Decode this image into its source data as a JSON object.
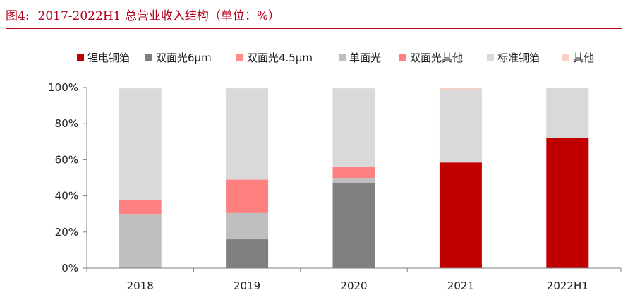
{
  "figure": {
    "label": "图4:",
    "title": "2017-2022H1 总营业收入结构（单位：%）"
  },
  "chart_data": {
    "type": "bar",
    "stacked": true,
    "categories": [
      "2018",
      "2019",
      "2020",
      "2021",
      "2022H1"
    ],
    "ylim": [
      0,
      100
    ],
    "yticks": [
      0,
      20,
      40,
      60,
      80,
      100
    ],
    "ytick_labels": [
      "0%",
      "20%",
      "40%",
      "60%",
      "80%",
      "100%"
    ],
    "legend_position": "top",
    "series": [
      {
        "name": "锂电铜箔",
        "color": "#c00000",
        "values": [
          0,
          0,
          0,
          58.5,
          72
        ]
      },
      {
        "name": "双面光6μm",
        "color": "#7f7f7f",
        "values": [
          0,
          16,
          47,
          0,
          0
        ]
      },
      {
        "name": "双面光4.5μm",
        "color": "#ff8b8b",
        "values": [
          0,
          0,
          0,
          0,
          0
        ]
      },
      {
        "name": "单面光",
        "color": "#bfbfbf",
        "values": [
          30,
          14.5,
          3,
          0,
          0
        ]
      },
      {
        "name": "双面光其他",
        "color": "#ff8080",
        "values": [
          7.5,
          18.5,
          6,
          0,
          0
        ]
      },
      {
        "name": "标准铜箔",
        "color": "#d9d9d9",
        "values": [
          62,
          50.5,
          43.5,
          40.5,
          28
        ]
      },
      {
        "name": "其他",
        "color": "#fbd0c4",
        "values": [
          0.5,
          0.5,
          0.5,
          1,
          0
        ]
      }
    ]
  }
}
